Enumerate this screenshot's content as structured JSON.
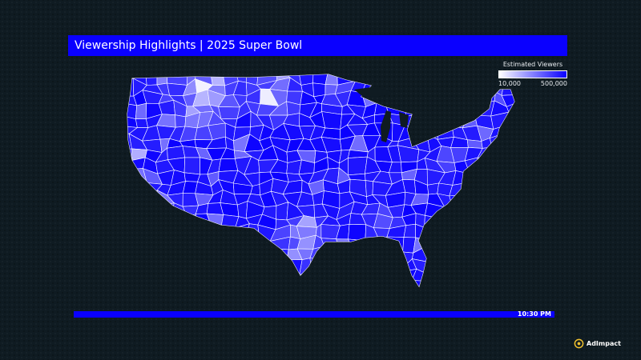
{
  "title": "Viewership Highlights | 2025 Super Bowl",
  "legend": {
    "title": "Estimated Viewers",
    "min_label": "10,000",
    "max_label": "500,000",
    "min_color": "#ffffff",
    "max_color": "#0a00ff"
  },
  "timeline": {
    "time": "10:30 PM",
    "color": "#0a00ff"
  },
  "map": {
    "region": "Contiguous United States",
    "units": "Designated Market Areas",
    "fill_scale": [
      "#ffffff",
      "#0a00ff"
    ],
    "boundary_color": "#ffffff"
  },
  "brand": {
    "name": "AdImpact",
    "icon": "adimpact-logo-icon",
    "accent": "#f2c12e"
  }
}
